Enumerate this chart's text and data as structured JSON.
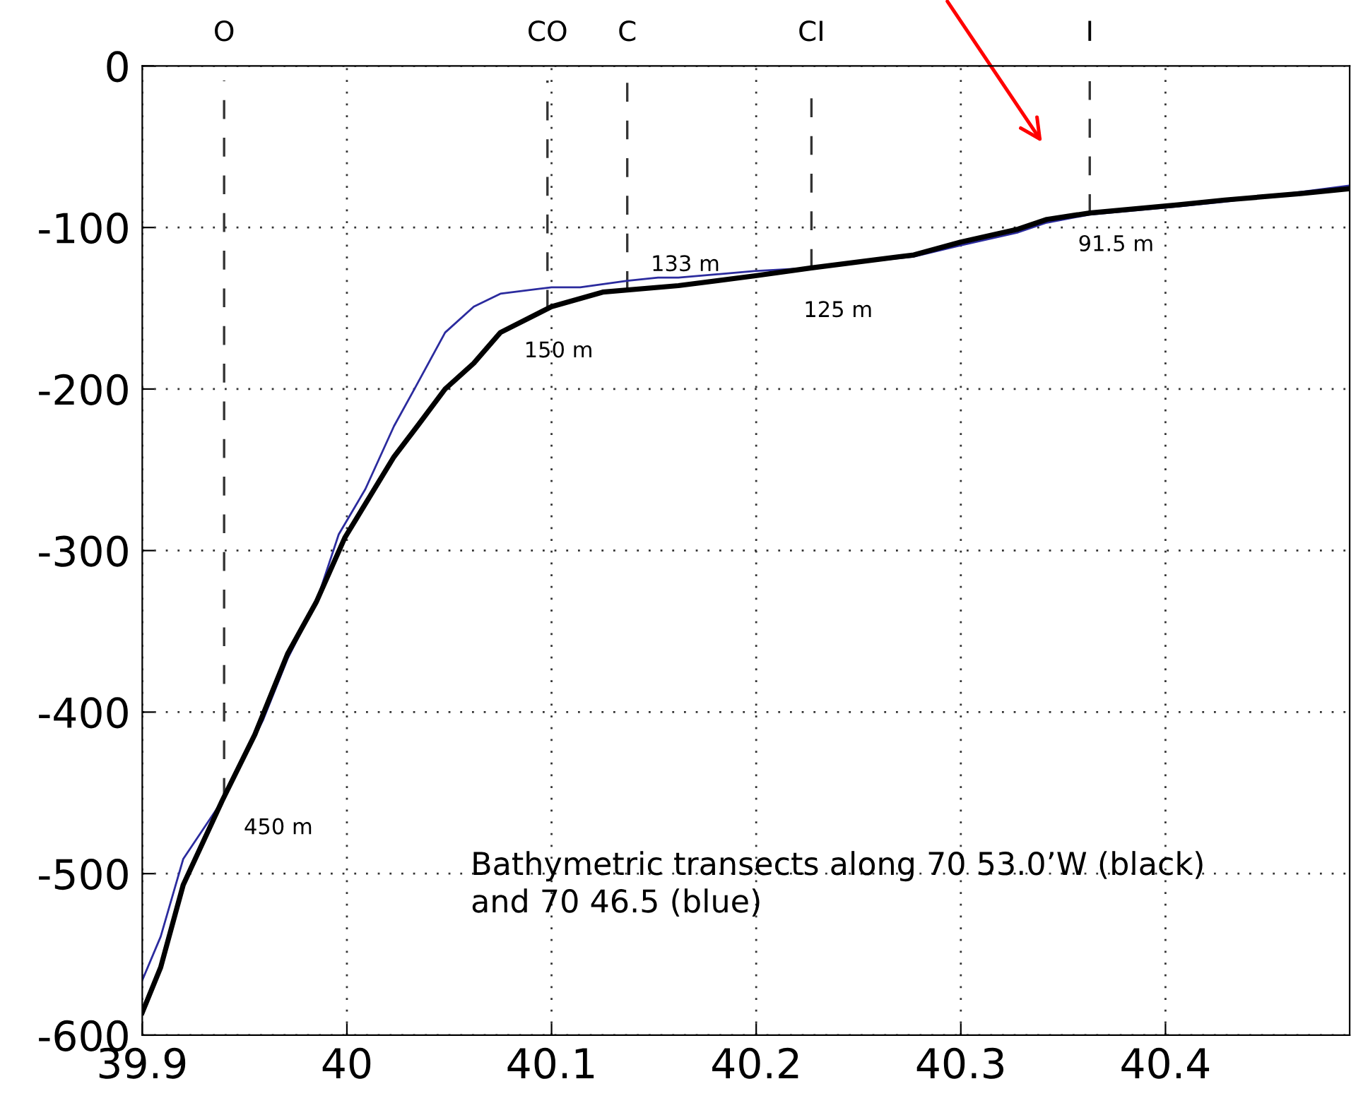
{
  "chart_data": {
    "type": "line",
    "xlim": [
      39.9,
      40.49
    ],
    "xticks": [
      39.9,
      40,
      40.1,
      40.2,
      40.3,
      40.4
    ],
    "ylim": [
      -600,
      0
    ],
    "yticks": [
      -600,
      -500,
      -400,
      -300,
      -200,
      -100,
      0
    ],
    "grid": true,
    "line_style": "solid",
    "series": [
      {
        "color": "#000000",
        "x": [
          39.9,
          39.909,
          39.92,
          39.939,
          39.955,
          39.971,
          39.985,
          39.999,
          40.011,
          40.023,
          40.035,
          40.048,
          40.062,
          40.075,
          40.1,
          40.125,
          40.162,
          40.199,
          40.227,
          40.277,
          40.3,
          40.328,
          40.342,
          40.363,
          40.406,
          40.429,
          40.466,
          40.49
        ],
        "values": [
          -586,
          -558,
          -507,
          -455,
          -414,
          -364,
          -332,
          -292,
          -267,
          -242,
          -222,
          -200,
          -184,
          -165,
          -149,
          -140,
          -136,
          -130,
          -125,
          -117,
          -109,
          -101,
          -95,
          -91,
          -86,
          -83,
          -79,
          -76
        ]
      },
      {
        "color": "#2b2b9e",
        "x": [
          39.9,
          39.909,
          39.92,
          39.939,
          39.959,
          39.971,
          39.985,
          39.996,
          40.009,
          40.023,
          40.033,
          40.048,
          40.062,
          40.075,
          40.1,
          40.114,
          40.137,
          40.152,
          40.162,
          40.199,
          40.227,
          40.277,
          40.3,
          40.328,
          40.342,
          40.363,
          40.406,
          40.429,
          40.466,
          40.49
        ],
        "values": [
          -566,
          -539,
          -491,
          -455,
          -405,
          -367,
          -332,
          -290,
          -262,
          -223,
          -200,
          -165,
          -149,
          -141,
          -137,
          -137,
          -133,
          -131,
          -131,
          -127,
          -125,
          -118,
          -111,
          -103,
          -97,
          -92,
          -87,
          -84,
          -78,
          -74
        ]
      }
    ],
    "ref_lines": [
      {
        "axis": "x",
        "value": 39.94,
        "label": "O",
        "color": "#333333",
        "line_style": "dashed"
      },
      {
        "axis": "x",
        "value": 40.098,
        "label": "CO",
        "color": "#333333",
        "line_style": "dashed"
      },
      {
        "axis": "x",
        "value": 40.137,
        "label": "C",
        "color": "#333333",
        "line_style": "dashed"
      },
      {
        "axis": "x",
        "value": 40.227,
        "label": "CI",
        "color": "#333333",
        "line_style": "dashed"
      },
      {
        "axis": "x",
        "value": 40.363,
        "label": "I",
        "color": "#333333",
        "line_style": "dashed"
      }
    ],
    "annotations": [
      {
        "text": "450 m",
        "x": 39.94,
        "y": -450
      },
      {
        "text": "150 m",
        "x": 40.1,
        "y": -150
      },
      {
        "text": "133 m",
        "x": 40.137,
        "y": -133
      },
      {
        "text": "125 m",
        "x": 40.227,
        "y": -125
      },
      {
        "text": "91.5 m",
        "x": 40.363,
        "y": -91.5
      },
      "Bathymetric transects along 70 53.0’W (black)\nand 70 46.5 (blue)"
    ]
  }
}
